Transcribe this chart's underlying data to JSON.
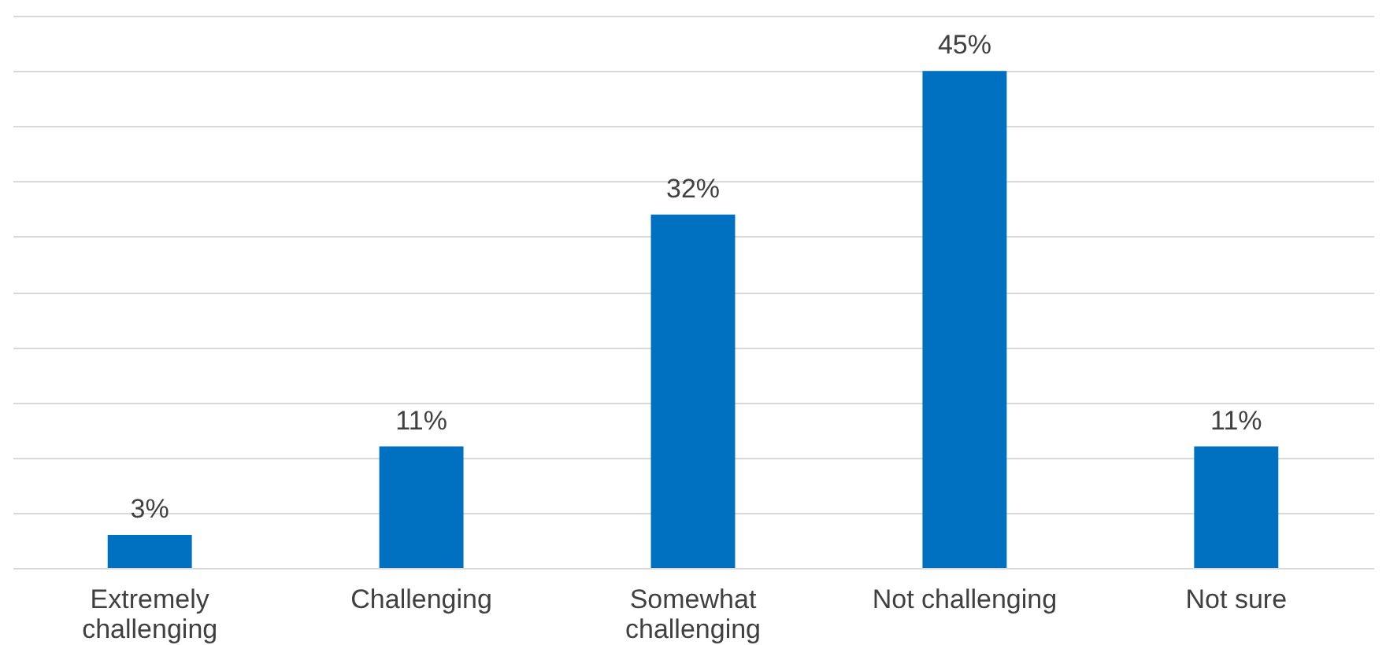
{
  "chart_data": {
    "type": "bar",
    "categories": [
      "Extremely challenging",
      "Challenging",
      "Somewhat challenging",
      "Not challenging",
      "Not sure"
    ],
    "values": [
      3,
      11,
      32,
      45,
      11
    ],
    "value_labels": [
      "3%",
      "11%",
      "32%",
      "45%",
      "11%"
    ],
    "color": "#0070c0",
    "ylim": [
      0,
      50
    ],
    "yticks": [
      0,
      5,
      10,
      15,
      20,
      25,
      30,
      35,
      40,
      45,
      50
    ],
    "grid": "y",
    "tick_labels": "x"
  }
}
